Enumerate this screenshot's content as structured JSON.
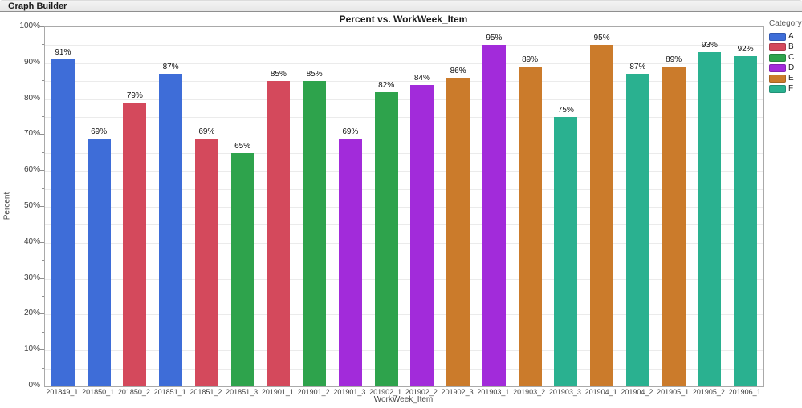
{
  "header": {
    "title": "Graph Builder"
  },
  "chart_data": {
    "type": "bar",
    "title": "Percent vs. WorkWeek_Item",
    "xlabel": "WorkWeek_Item",
    "ylabel": "Percent",
    "ylim": [
      0,
      100
    ],
    "y_tick_step": 10,
    "y_minor_tick_step": 5,
    "y_tick_suffix": "%",
    "grid": true,
    "legend_position": "right",
    "legend_title": "Category",
    "legend_entries": [
      {
        "label": "A",
        "color": "#3E6DD8"
      },
      {
        "label": "B",
        "color": "#D4495C"
      },
      {
        "label": "C",
        "color": "#2EA34C"
      },
      {
        "label": "D",
        "color": "#A22BDA"
      },
      {
        "label": "E",
        "color": "#CB7B2B"
      },
      {
        "label": "F",
        "color": "#2AB190"
      }
    ],
    "categories": [
      "201849_1",
      "201850_1",
      "201850_2",
      "201851_1",
      "201851_2",
      "201851_3",
      "201901_1",
      "201901_2",
      "201901_3",
      "201902_1",
      "201902_2",
      "201902_3",
      "201903_1",
      "201903_2",
      "201903_3",
      "201904_1",
      "201904_2",
      "201905_1",
      "201905_2",
      "201906_1"
    ],
    "values": [
      91,
      69,
      79,
      87,
      69,
      65,
      85,
      85,
      69,
      82,
      84,
      86,
      95,
      89,
      75,
      95,
      87,
      89,
      93,
      92
    ],
    "bar_groups": [
      "A",
      "A",
      "B",
      "A",
      "B",
      "C",
      "B",
      "C",
      "D",
      "C",
      "D",
      "E",
      "D",
      "E",
      "F",
      "E",
      "F",
      "E",
      "F",
      "F"
    ],
    "data_label_suffix": "%"
  }
}
